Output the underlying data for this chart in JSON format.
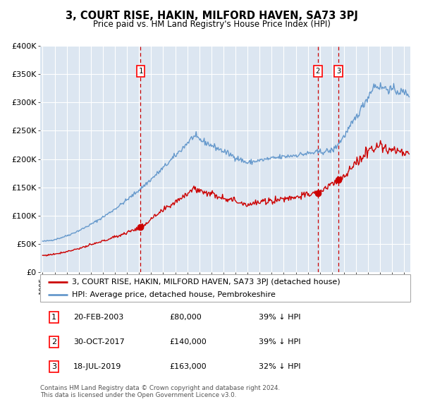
{
  "title": "3, COURT RISE, HAKIN, MILFORD HAVEN, SA73 3PJ",
  "subtitle": "Price paid vs. HM Land Registry's House Price Index (HPI)",
  "ylim": [
    0,
    400000
  ],
  "yticks": [
    0,
    50000,
    100000,
    150000,
    200000,
    250000,
    300000,
    350000,
    400000
  ],
  "ytick_labels": [
    "£0",
    "£50K",
    "£100K",
    "£150K",
    "£200K",
    "£250K",
    "£300K",
    "£350K",
    "£400K"
  ],
  "xlim_start": 1994.8,
  "xlim_end": 2025.5,
  "xtick_years": [
    1995,
    1996,
    1997,
    1998,
    1999,
    2000,
    2001,
    2002,
    2003,
    2004,
    2005,
    2006,
    2007,
    2008,
    2009,
    2010,
    2011,
    2012,
    2013,
    2014,
    2015,
    2016,
    2017,
    2018,
    2019,
    2020,
    2021,
    2022,
    2023,
    2024,
    2025
  ],
  "sale_dates": [
    2003.13,
    2017.83,
    2019.54
  ],
  "sale_prices": [
    80000,
    140000,
    163000
  ],
  "sale_labels": [
    "1",
    "2",
    "3"
  ],
  "legend_property": "3, COURT RISE, HAKIN, MILFORD HAVEN, SA73 3PJ (detached house)",
  "legend_hpi": "HPI: Average price, detached house, Pembrokeshire",
  "table_rows": [
    {
      "num": "1",
      "date": "20-FEB-2003",
      "price": "£80,000",
      "hpi": "39% ↓ HPI"
    },
    {
      "num": "2",
      "date": "30-OCT-2017",
      "price": "£140,000",
      "hpi": "39% ↓ HPI"
    },
    {
      "num": "3",
      "date": "18-JUL-2019",
      "price": "£163,000",
      "hpi": "32% ↓ HPI"
    }
  ],
  "footnote": "Contains HM Land Registry data © Crown copyright and database right 2024.\nThis data is licensed under the Open Government Licence v3.0.",
  "property_color": "#cc0000",
  "hpi_color": "#6699cc",
  "background_color": "#ffffff",
  "plot_bg_color": "#dce6f1",
  "grid_color": "#ffffff"
}
